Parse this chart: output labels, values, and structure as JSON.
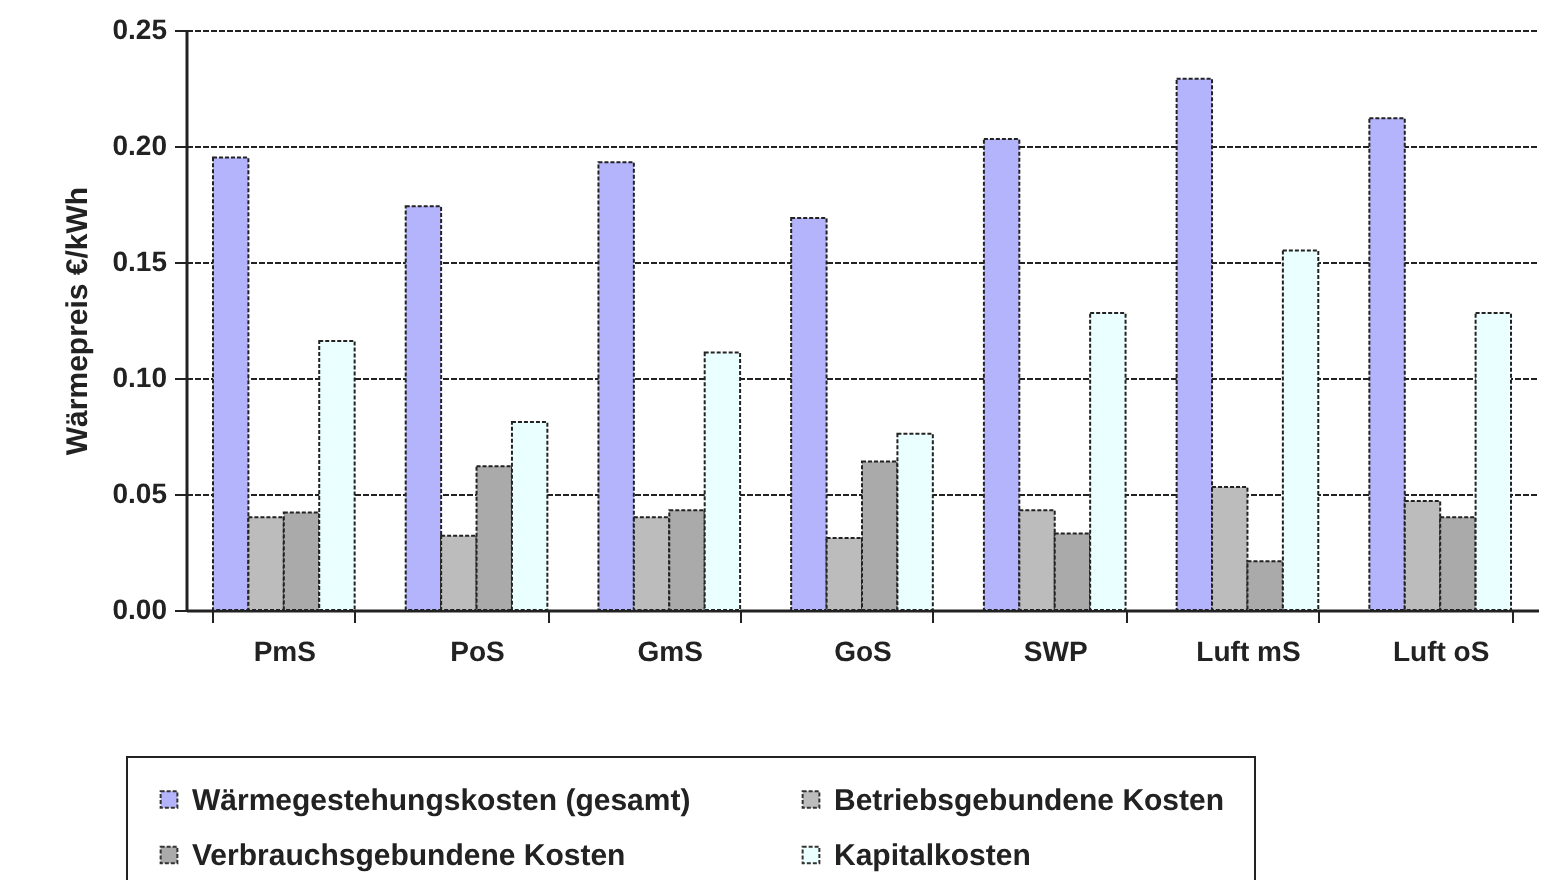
{
  "chart_data": {
    "type": "bar",
    "ylabel": "Wärmepreis €/kWh",
    "categories": [
      "PmS",
      "PoS",
      "GmS",
      "GoS",
      "SWP",
      "Luft mS",
      "Luft oS"
    ],
    "series": [
      {
        "name": "Wärmegestehungskosten (gesamt)",
        "color": "#b4b4fc",
        "values": [
          0.195,
          0.174,
          0.193,
          0.169,
          0.203,
          0.229,
          0.212
        ]
      },
      {
        "name": "Betriebsgebundene Kosten",
        "color": "#bcbcbc",
        "values": [
          0.04,
          0.032,
          0.04,
          0.031,
          0.043,
          0.053,
          0.047
        ]
      },
      {
        "name": "Verbrauchsgebundene Kosten",
        "color": "#aaaaaa",
        "values": [
          0.042,
          0.062,
          0.043,
          0.064,
          0.033,
          0.021,
          0.04
        ]
      },
      {
        "name": "Kapitalkosten",
        "color": "#eaffff",
        "values": [
          0.116,
          0.081,
          0.111,
          0.076,
          0.128,
          0.155,
          0.128
        ]
      }
    ],
    "ylim": [
      0,
      0.25
    ],
    "yticks": [
      {
        "value": 0,
        "label": "0.00"
      },
      {
        "value": 0.05,
        "label": "0.05"
      },
      {
        "value": 0.1,
        "label": "0.10"
      },
      {
        "value": 0.15,
        "label": "0.15"
      },
      {
        "value": 0.2,
        "label": "0.20"
      },
      {
        "value": 0.25,
        "label": "0.25"
      }
    ],
    "grid": "y",
    "legend": "bottom"
  }
}
